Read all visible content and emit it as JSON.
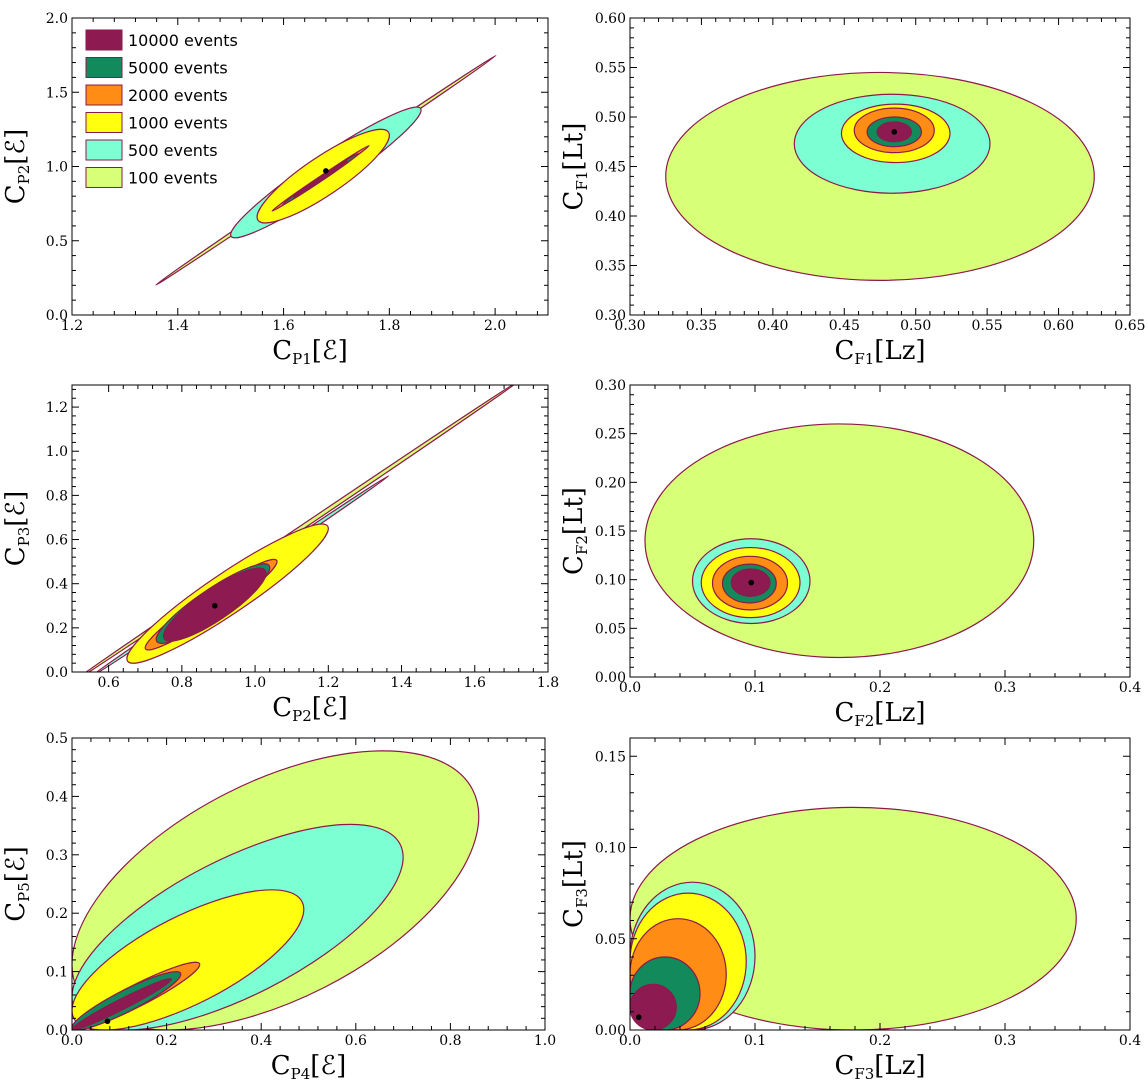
{
  "colors": {
    "outline": "#8b1a4a",
    "c10000": "#8e1a52",
    "c5000": "#138a5c",
    "c2000": "#ff8c14",
    "c1000": "#ffff10",
    "c500": "#7dffd4",
    "c100": "#d8ff78",
    "point": "#000000"
  },
  "legend": [
    {
      "label": "10000 events",
      "color_key": "c10000"
    },
    {
      "label": "5000 events",
      "color_key": "c5000"
    },
    {
      "label": "2000 events",
      "color_key": "c2000"
    },
    {
      "label": "1000 events",
      "color_key": "c1000"
    },
    {
      "label": "500 events",
      "color_key": "c500"
    },
    {
      "label": "100 events",
      "color_key": "c100"
    }
  ],
  "chart_data": [
    {
      "type": "contour",
      "xlabel": {
        "main": "C",
        "sub": "P1",
        "bracket": "[ℰ]"
      },
      "ylabel": {
        "main": "C",
        "sub": "P2",
        "bracket": "[ℰ]"
      },
      "xlim": [
        1.2,
        2.1
      ],
      "ylim": [
        0.0,
        2.0
      ],
      "xticks": [
        "1.2",
        "1.4",
        "1.6",
        "1.8",
        "2.0"
      ],
      "yticks": [
        "0.0",
        "0.5",
        "1.0",
        "1.5",
        "2.0"
      ],
      "center": [
        1.68,
        0.97
      ],
      "regions": [
        {
          "level": "100 events",
          "color_key": "c100",
          "x_range": [
            1.36,
            2.0
          ],
          "y_range": [
            0.22,
            1.73
          ]
        },
        {
          "level": "500 events",
          "color_key": "c500",
          "x_range": [
            1.5,
            1.86
          ],
          "y_range": [
            0.52,
            1.4
          ]
        },
        {
          "level": "1000 events",
          "color_key": "c1000",
          "x_range": [
            1.55,
            1.8
          ],
          "y_range": [
            0.62,
            1.25
          ]
        },
        {
          "level": "2000 events",
          "color_key": "c2000",
          "x_range": [
            1.58,
            1.76
          ],
          "y_range": [
            0.72,
            1.12
          ]
        },
        {
          "level": "5000 events",
          "color_key": "c5000",
          "x_range": [
            1.6,
            1.74
          ],
          "y_range": [
            0.76,
            1.07
          ]
        },
        {
          "level": "10000 events",
          "color_key": "c10000",
          "x_range": [
            1.62,
            1.72
          ],
          "y_range": [
            0.8,
            1.03
          ]
        }
      ]
    },
    {
      "type": "contour",
      "xlabel": {
        "main": "C",
        "sub": "F1",
        "bracket": "[Lz]"
      },
      "ylabel": {
        "main": "C",
        "sub": "F1",
        "bracket": "[Lt]"
      },
      "xlim": [
        0.3,
        0.65
      ],
      "ylim": [
        0.3,
        0.6
      ],
      "xticks": [
        "0.30",
        "0.35",
        "0.40",
        "0.45",
        "0.50",
        "0.55",
        "0.60",
        "0.65"
      ],
      "yticks": [
        "0.30",
        "0.35",
        "0.40",
        "0.45",
        "0.50",
        "0.55",
        "0.60"
      ],
      "center": [
        0.485,
        0.485
      ],
      "regions": [
        {
          "level": "100 events",
          "color_key": "c100",
          "x_range": [
            0.325,
            0.625
          ],
          "y_range": [
            0.335,
            0.545
          ]
        },
        {
          "level": "500 events",
          "color_key": "c500",
          "x_range": [
            0.415,
            0.552
          ],
          "y_range": [
            0.423,
            0.523
          ]
        },
        {
          "level": "1000 events",
          "color_key": "c1000",
          "x_range": [
            0.448,
            0.524
          ],
          "y_range": [
            0.454,
            0.513
          ]
        },
        {
          "level": "2000 events",
          "color_key": "c2000",
          "x_range": [
            0.457,
            0.513
          ],
          "y_range": [
            0.464,
            0.509
          ]
        },
        {
          "level": "5000 events",
          "color_key": "c5000",
          "x_range": [
            0.466,
            0.504
          ],
          "y_range": [
            0.47,
            0.5
          ]
        },
        {
          "level": "10000 events",
          "color_key": "c10000",
          "x_range": [
            0.473,
            0.497
          ],
          "y_range": [
            0.475,
            0.495
          ]
        }
      ]
    },
    {
      "type": "contour",
      "xlabel": {
        "main": "C",
        "sub": "P2",
        "bracket": "[ℰ]"
      },
      "ylabel": {
        "main": "C",
        "sub": "P3",
        "bracket": "[ℰ]"
      },
      "xlim": [
        0.5,
        1.8
      ],
      "ylim": [
        0.0,
        1.3
      ],
      "xticks": [
        "0.6",
        "0.8",
        "1.0",
        "1.2",
        "1.4",
        "1.6",
        "1.8"
      ],
      "yticks": [
        "0.0",
        "0.2",
        "0.4",
        "0.6",
        "0.8",
        "1.0",
        "1.2"
      ],
      "center": [
        0.89,
        0.3
      ],
      "regions": [
        {
          "level": "100 events",
          "color_key": "c100",
          "x_range": [
            0.5,
            1.72
          ],
          "y_range": [
            0.0,
            1.27
          ]
        },
        {
          "level": "500 events",
          "color_key": "c500",
          "x_range": [
            0.55,
            1.36
          ],
          "y_range": [
            0.0,
            0.86
          ]
        },
        {
          "level": "1000 events",
          "color_key": "c1000",
          "x_range": [
            0.65,
            1.2
          ],
          "y_range": [
            0.04,
            0.67
          ]
        },
        {
          "level": "2000 events",
          "color_key": "c2000",
          "x_range": [
            0.7,
            1.06
          ],
          "y_range": [
            0.1,
            0.51
          ]
        },
        {
          "level": "5000 events",
          "color_key": "c5000",
          "x_range": [
            0.73,
            1.04
          ],
          "y_range": [
            0.13,
            0.49
          ]
        },
        {
          "level": "10000 events",
          "color_key": "c10000",
          "x_range": [
            0.75,
            1.03
          ],
          "y_range": [
            0.14,
            0.47
          ]
        }
      ]
    },
    {
      "type": "contour",
      "xlabel": {
        "main": "C",
        "sub": "F2",
        "bracket": "[Lz]"
      },
      "ylabel": {
        "main": "C",
        "sub": "F2",
        "bracket": "[Lt]"
      },
      "xlim": [
        0.0,
        0.4
      ],
      "ylim": [
        0.0,
        0.3
      ],
      "xticks": [
        "0.0",
        "0.1",
        "0.2",
        "0.3",
        "0.4"
      ],
      "yticks": [
        "0.00",
        "0.05",
        "0.10",
        "0.15",
        "0.20",
        "0.25",
        "0.30"
      ],
      "center": [
        0.097,
        0.097
      ],
      "regions": [
        {
          "level": "100 events",
          "color_key": "c100",
          "x_range": [
            0.012,
            0.323
          ],
          "y_range": [
            0.02,
            0.26
          ]
        },
        {
          "level": "500 events",
          "color_key": "c500",
          "x_range": [
            0.05,
            0.144
          ],
          "y_range": [
            0.055,
            0.142
          ]
        },
        {
          "level": "1000 events",
          "color_key": "c1000",
          "x_range": [
            0.057,
            0.136
          ],
          "y_range": [
            0.061,
            0.133
          ]
        },
        {
          "level": "2000 events",
          "color_key": "c2000",
          "x_range": [
            0.066,
            0.126
          ],
          "y_range": [
            0.069,
            0.124
          ]
        },
        {
          "level": "5000 events",
          "color_key": "c5000",
          "x_range": [
            0.074,
            0.117
          ],
          "y_range": [
            0.076,
            0.116
          ]
        },
        {
          "level": "10000 events",
          "color_key": "c10000",
          "x_range": [
            0.081,
            0.112
          ],
          "y_range": [
            0.083,
            0.111
          ]
        }
      ]
    },
    {
      "type": "contour",
      "xlabel": {
        "main": "C",
        "sub": "P4",
        "bracket": "[ℰ]"
      },
      "ylabel": {
        "main": "C",
        "sub": "P5",
        "bracket": "[ℰ]"
      },
      "xlim": [
        0.0,
        1.0
      ],
      "ylim": [
        0.0,
        0.5
      ],
      "xticks": [
        "0.0",
        "0.2",
        "0.4",
        "0.6",
        "0.8",
        "1.0"
      ],
      "yticks": [
        "0.0",
        "0.1",
        "0.2",
        "0.3",
        "0.4",
        "0.5"
      ],
      "center": [
        0.075,
        0.015
      ],
      "regions": [
        {
          "level": "100 events",
          "color_key": "c100",
          "x_range": [
            0.0,
            0.86
          ],
          "y_range": [
            0.0,
            0.478
          ]
        },
        {
          "level": "500 events",
          "color_key": "c500",
          "x_range": [
            0.0,
            0.7
          ],
          "y_range": [
            0.0,
            0.352
          ]
        },
        {
          "level": "1000 events",
          "color_key": "c1000",
          "x_range": [
            0.0,
            0.49
          ],
          "y_range": [
            0.0,
            0.24
          ]
        },
        {
          "level": "2000 events",
          "color_key": "c2000",
          "x_range": [
            0.0,
            0.27
          ],
          "y_range": [
            0.0,
            0.116
          ]
        },
        {
          "level": "5000 events",
          "color_key": "c5000",
          "x_range": [
            0.0,
            0.23
          ],
          "y_range": [
            0.0,
            0.1
          ]
        },
        {
          "level": "10000 events",
          "color_key": "c10000",
          "x_range": [
            0.0,
            0.21
          ],
          "y_range": [
            0.0,
            0.088
          ]
        }
      ]
    },
    {
      "type": "contour",
      "xlabel": {
        "main": "C",
        "sub": "F3",
        "bracket": "[Lz]"
      },
      "ylabel": {
        "main": "C",
        "sub": "F3",
        "bracket": "[Lt]"
      },
      "xlim": [
        0.0,
        0.4
      ],
      "ylim": [
        0.0,
        0.16
      ],
      "xticks": [
        "0.0",
        "0.1",
        "0.2",
        "0.3",
        "0.4"
      ],
      "yticks": [
        "0.00",
        "0.05",
        "0.10",
        "0.15"
      ],
      "center": [
        0.007,
        0.007
      ],
      "regions": [
        {
          "level": "100 events",
          "color_key": "c100",
          "x_range": [
            0.0,
            0.357
          ],
          "y_range": [
            0.0,
            0.122
          ]
        },
        {
          "level": "500 events",
          "color_key": "c500",
          "x_range": [
            0.0,
            0.1
          ],
          "y_range": [
            0.0,
            0.081
          ]
        },
        {
          "level": "1000 events",
          "color_key": "c1000",
          "x_range": [
            0.0,
            0.093
          ],
          "y_range": [
            0.0,
            0.075
          ]
        },
        {
          "level": "2000 events",
          "color_key": "c2000",
          "x_range": [
            0.0,
            0.077
          ],
          "y_range": [
            0.0,
            0.061
          ]
        },
        {
          "level": "5000 events",
          "color_key": "c5000",
          "x_range": [
            0.0,
            0.056
          ],
          "y_range": [
            0.0,
            0.04
          ]
        },
        {
          "level": "10000 events",
          "color_key": "c10000",
          "x_range": [
            0.0,
            0.037
          ],
          "y_range": [
            0.0,
            0.025
          ]
        }
      ]
    }
  ]
}
